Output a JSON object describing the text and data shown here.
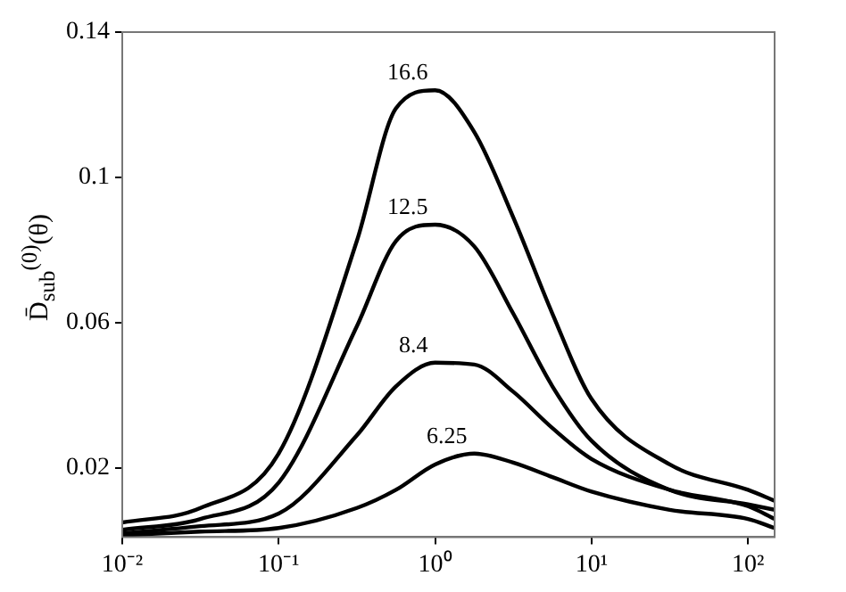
{
  "chart_data": {
    "type": "line",
    "ylabel": "D̄$_{sub}$$^{(0)}$(θ)",
    "x": [
      0.01,
      0.0316,
      0.1,
      0.316,
      0.562,
      1,
      1.78,
      3.16,
      5.62,
      10,
      31.6,
      100,
      148
    ],
    "series": [
      {
        "name": "16.6",
        "color": "#000000",
        "values": [
          0.005,
          0.009,
          0.024,
          0.0825,
          0.119,
          0.124,
          0.1125,
          0.089,
          0.0625,
          0.039,
          0.021,
          0.014,
          0.011
        ]
      },
      {
        "name": "12.5",
        "color": "#000000",
        "values": [
          0.003,
          0.006,
          0.016,
          0.059,
          0.0825,
          0.087,
          0.081,
          0.0625,
          0.0425,
          0.0275,
          0.014,
          0.01,
          0.0085
        ]
      },
      {
        "name": "8.4",
        "color": "#000000",
        "values": [
          0.002,
          0.004,
          0.0075,
          0.029,
          0.0425,
          0.049,
          0.0485,
          0.041,
          0.031,
          0.0225,
          0.014,
          0.0095,
          0.006
        ]
      },
      {
        "name": "6.25",
        "color": "#000000",
        "values": [
          0.0015,
          0.0025,
          0.0035,
          0.009,
          0.014,
          0.021,
          0.024,
          0.0215,
          0.0175,
          0.0135,
          0.0085,
          0.006,
          0.0035
        ]
      }
    ],
    "log": "x",
    "xlim": [
      0.01,
      148
    ],
    "ylim": [
      0.001,
      0.14
    ],
    "xticks": [
      {
        "value": 0.01,
        "label": "10⁻²"
      },
      {
        "value": 0.1,
        "label": "10⁻¹"
      },
      {
        "value": 1,
        "label": "10⁰"
      },
      {
        "value": 10,
        "label": "10¹"
      },
      {
        "value": 100,
        "label": "10²"
      }
    ],
    "yticks": [
      0.02,
      0.06,
      0.1,
      0.14
    ],
    "grid": false,
    "legend": false,
    "marker": "none",
    "line_style": "solid"
  }
}
